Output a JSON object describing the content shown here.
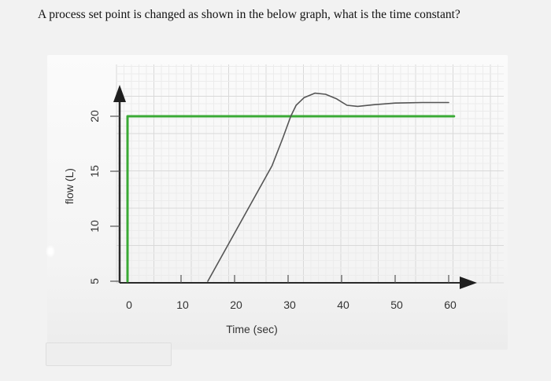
{
  "question": "A process set point is changed as shown in the below graph, what is the time constant?",
  "chart_data": {
    "type": "line",
    "title": "",
    "xlabel": "Time (sec)",
    "ylabel": "flow (L)",
    "x_ticks": [
      0,
      10,
      20,
      30,
      40,
      50,
      60
    ],
    "y_ticks": [
      5,
      10,
      15,
      20
    ],
    "xlim": [
      0,
      60
    ],
    "ylim": [
      5,
      22
    ],
    "grid": true,
    "series": [
      {
        "color": "#3aaa35",
        "points": [
          [
            0,
            5
          ],
          [
            0,
            20
          ],
          [
            61,
            20
          ]
        ]
      },
      {
        "color": "#555555",
        "points": [
          [
            15,
            5
          ],
          [
            19,
            8.5
          ],
          [
            23,
            12
          ],
          [
            27,
            15.5
          ],
          [
            29,
            18
          ],
          [
            30.5,
            20
          ],
          [
            31.5,
            21
          ],
          [
            33,
            21.7
          ],
          [
            35,
            22.1
          ],
          [
            37,
            22.0
          ],
          [
            39,
            21.6
          ],
          [
            41,
            21.0
          ],
          [
            43,
            20.9
          ],
          [
            46,
            21.05
          ],
          [
            50,
            21.2
          ],
          [
            55,
            21.25
          ],
          [
            60,
            21.25
          ]
        ]
      }
    ]
  }
}
